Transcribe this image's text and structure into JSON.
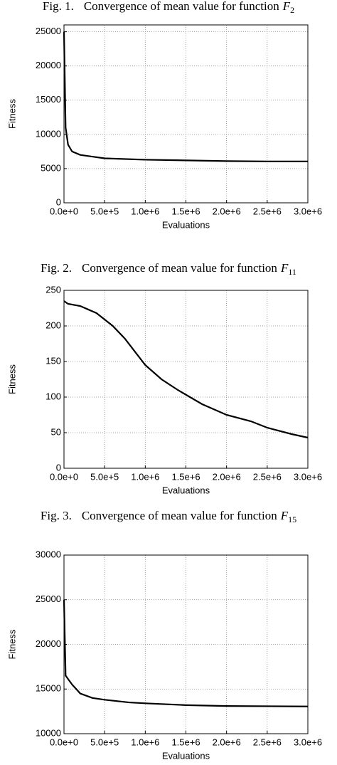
{
  "chart_data": [
    {
      "type": "line",
      "caption": {
        "fig": "Fig. 1.",
        "text": "Convergence of mean value for function",
        "func": "F",
        "sub": "2"
      },
      "xlabel": "Evaluations",
      "ylabel": "Fitness",
      "x": [
        0,
        20000,
        50000,
        100000,
        200000,
        500000,
        1000000,
        1500000,
        2000000,
        2500000,
        3000000
      ],
      "series": [
        {
          "name": "mean",
          "color": "#000000",
          "values": [
            25000,
            11000,
            8500,
            7500,
            7000,
            6500,
            6300,
            6200,
            6100,
            6050,
            6050
          ]
        }
      ],
      "xlim": [
        0,
        3000000
      ],
      "ylim": [
        0,
        26000
      ],
      "xticks": [
        {
          "value": 0,
          "label": "0.0e+0"
        },
        {
          "value": 500000,
          "label": "5.0e+5"
        },
        {
          "value": 1000000,
          "label": "1.0e+6"
        },
        {
          "value": 1500000,
          "label": "1.5e+6"
        },
        {
          "value": 2000000,
          "label": "2.0e+6"
        },
        {
          "value": 2500000,
          "label": "2.5e+6"
        },
        {
          "value": 3000000,
          "label": "3.0e+6"
        }
      ],
      "yticks": [
        0,
        5000,
        10000,
        15000,
        20000,
        25000
      ],
      "grid": true
    },
    {
      "type": "line",
      "caption": {
        "fig": "Fig. 2.",
        "text": "Convergence of mean value for function",
        "func": "F",
        "sub": "11"
      },
      "xlabel": "Evaluations",
      "ylabel": "Fitness",
      "x": [
        0,
        50000,
        200000,
        400000,
        600000,
        750000,
        1000000,
        1200000,
        1400000,
        1700000,
        2000000,
        2300000,
        2500000,
        2800000,
        3000000
      ],
      "series": [
        {
          "name": "mean",
          "color": "#000000",
          "values": [
            235,
            231,
            228,
            218,
            200,
            182,
            145,
            125,
            110,
            90,
            75,
            66,
            57,
            48,
            43
          ]
        }
      ],
      "xlim": [
        0,
        3000000
      ],
      "ylim": [
        0,
        250
      ],
      "xticks": [
        {
          "value": 0,
          "label": "0.0e+0"
        },
        {
          "value": 500000,
          "label": "5.0e+5"
        },
        {
          "value": 1000000,
          "label": "1.0e+6"
        },
        {
          "value": 1500000,
          "label": "1.5e+6"
        },
        {
          "value": 2000000,
          "label": "2.0e+6"
        },
        {
          "value": 2500000,
          "label": "2.5e+6"
        },
        {
          "value": 3000000,
          "label": "3.0e+6"
        }
      ],
      "yticks": [
        0,
        50,
        100,
        150,
        200,
        250
      ],
      "grid": true
    },
    {
      "type": "line",
      "caption": {
        "fig": "Fig. 3.",
        "text": "Convergence of mean value for function",
        "func": "F",
        "sub": "15"
      },
      "xlabel": "Evaluations",
      "ylabel": "Fitness",
      "x": [
        0,
        20000,
        100000,
        200000,
        350000,
        500000,
        800000,
        1000000,
        1500000,
        2000000,
        3000000
      ],
      "series": [
        {
          "name": "mean",
          "color": "#000000",
          "values": [
            25000,
            16500,
            15500,
            14500,
            14000,
            13800,
            13500,
            13400,
            13200,
            13100,
            13050
          ]
        }
      ],
      "xlim": [
        0,
        3000000
      ],
      "ylim": [
        10000,
        30000
      ],
      "xticks": [
        {
          "value": 0,
          "label": "0.0e+0"
        },
        {
          "value": 500000,
          "label": "5.0e+5"
        },
        {
          "value": 1000000,
          "label": "1.0e+6"
        },
        {
          "value": 1500000,
          "label": "1.5e+6"
        },
        {
          "value": 2000000,
          "label": "2.0e+6"
        },
        {
          "value": 2500000,
          "label": "2.5e+6"
        },
        {
          "value": 3000000,
          "label": "3.0e+6"
        }
      ],
      "yticks": [
        10000,
        15000,
        20000,
        25000,
        30000
      ],
      "grid": true
    }
  ]
}
